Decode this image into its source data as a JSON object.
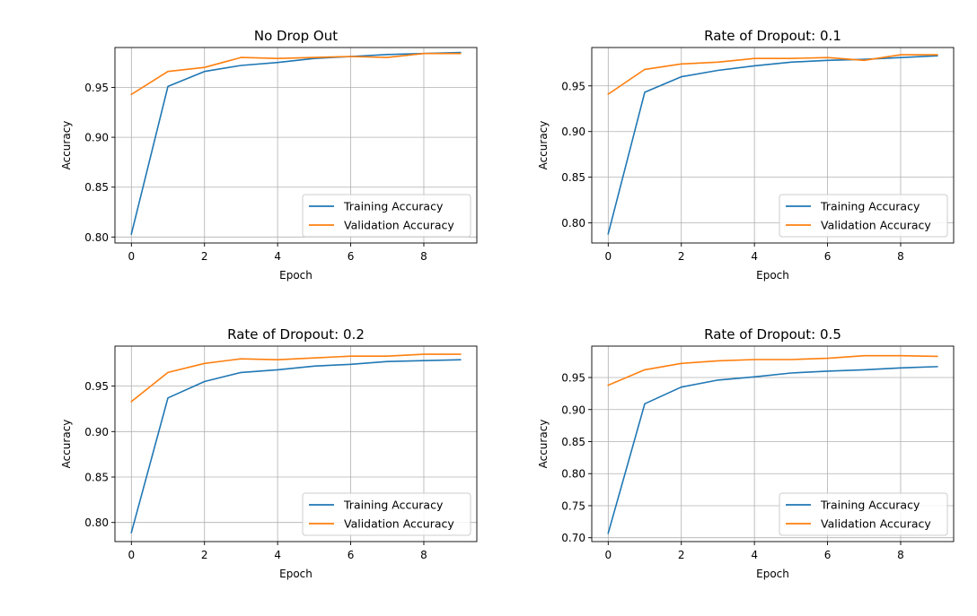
{
  "chart_data": [
    {
      "type": "line",
      "title": "No Drop Out",
      "xlabel": "Epoch",
      "ylabel": "Accuracy",
      "x": [
        0,
        1,
        2,
        3,
        4,
        5,
        6,
        7,
        8,
        9
      ],
      "xlim": [
        -0.45,
        9.45
      ],
      "ylim": [
        0.794,
        0.99
      ],
      "xticks": [
        0,
        2,
        4,
        6,
        8
      ],
      "xtick_labels": [
        "0",
        "2",
        "4",
        "6",
        "8"
      ],
      "yticks": [
        0.8,
        0.85,
        0.9,
        0.95
      ],
      "ytick_labels": [
        "0.80",
        "0.85",
        "0.90",
        "0.95"
      ],
      "grid": true,
      "legend_position": "lower-right",
      "series": [
        {
          "name": "Training Accuracy",
          "color": "#1f77b4",
          "values": [
            0.803,
            0.951,
            0.966,
            0.972,
            0.975,
            0.979,
            0.981,
            0.983,
            0.984,
            0.985
          ]
        },
        {
          "name": "Validation Accuracy",
          "color": "#ff7f0e",
          "values": [
            0.943,
            0.966,
            0.97,
            0.98,
            0.979,
            0.98,
            0.981,
            0.98,
            0.984,
            0.984
          ]
        }
      ]
    },
    {
      "type": "line",
      "title": "Rate of Dropout: 0.1",
      "xlabel": "Epoch",
      "ylabel": "Accuracy",
      "x": [
        0,
        1,
        2,
        3,
        4,
        5,
        6,
        7,
        8,
        9
      ],
      "xlim": [
        -0.45,
        9.45
      ],
      "ylim": [
        0.778,
        0.992
      ],
      "xticks": [
        0,
        2,
        4,
        6,
        8
      ],
      "xtick_labels": [
        "0",
        "2",
        "4",
        "6",
        "8"
      ],
      "yticks": [
        0.8,
        0.85,
        0.9,
        0.95
      ],
      "ytick_labels": [
        "0.80",
        "0.85",
        "0.90",
        "0.95"
      ],
      "grid": true,
      "legend_position": "lower-right",
      "series": [
        {
          "name": "Training Accuracy",
          "color": "#1f77b4",
          "values": [
            0.788,
            0.943,
            0.96,
            0.967,
            0.972,
            0.976,
            0.978,
            0.979,
            0.981,
            0.983
          ]
        },
        {
          "name": "Validation Accuracy",
          "color": "#ff7f0e",
          "values": [
            0.941,
            0.968,
            0.974,
            0.976,
            0.98,
            0.98,
            0.981,
            0.978,
            0.984,
            0.984
          ]
        }
      ]
    },
    {
      "type": "line",
      "title": "Rate of Dropout: 0.2",
      "xlabel": "Epoch",
      "ylabel": "Accuracy",
      "x": [
        0,
        1,
        2,
        3,
        4,
        5,
        6,
        7,
        8,
        9
      ],
      "xlim": [
        -0.45,
        9.45
      ],
      "ylim": [
        0.779,
        0.994
      ],
      "xticks": [
        0,
        2,
        4,
        6,
        8
      ],
      "xtick_labels": [
        "0",
        "2",
        "4",
        "6",
        "8"
      ],
      "yticks": [
        0.8,
        0.85,
        0.9,
        0.95
      ],
      "ytick_labels": [
        "0.80",
        "0.85",
        "0.90",
        "0.95"
      ],
      "grid": true,
      "legend_position": "lower-right",
      "series": [
        {
          "name": "Training Accuracy",
          "color": "#1f77b4",
          "values": [
            0.789,
            0.937,
            0.955,
            0.965,
            0.968,
            0.972,
            0.974,
            0.977,
            0.978,
            0.979
          ]
        },
        {
          "name": "Validation Accuracy",
          "color": "#ff7f0e",
          "values": [
            0.933,
            0.965,
            0.975,
            0.98,
            0.979,
            0.981,
            0.983,
            0.983,
            0.985,
            0.985
          ]
        }
      ]
    },
    {
      "type": "line",
      "title": "Rate of Dropout: 0.5",
      "xlabel": "Epoch",
      "ylabel": "Accuracy",
      "x": [
        0,
        1,
        2,
        3,
        4,
        5,
        6,
        7,
        8,
        9
      ],
      "xlim": [
        -0.45,
        9.45
      ],
      "ylim": [
        0.694,
        0.999
      ],
      "xticks": [
        0,
        2,
        4,
        6,
        8
      ],
      "xtick_labels": [
        "0",
        "2",
        "4",
        "6",
        "8"
      ],
      "yticks": [
        0.7,
        0.75,
        0.8,
        0.85,
        0.9,
        0.95
      ],
      "ytick_labels": [
        "0.70",
        "0.75",
        "0.80",
        "0.85",
        "0.90",
        "0.95"
      ],
      "grid": true,
      "legend_position": "lower-right",
      "series": [
        {
          "name": "Training Accuracy",
          "color": "#1f77b4",
          "values": [
            0.707,
            0.909,
            0.935,
            0.946,
            0.951,
            0.957,
            0.96,
            0.962,
            0.965,
            0.967
          ]
        },
        {
          "name": "Validation Accuracy",
          "color": "#ff7f0e",
          "values": [
            0.938,
            0.962,
            0.972,
            0.976,
            0.978,
            0.978,
            0.98,
            0.984,
            0.984,
            0.983
          ]
        }
      ]
    }
  ]
}
